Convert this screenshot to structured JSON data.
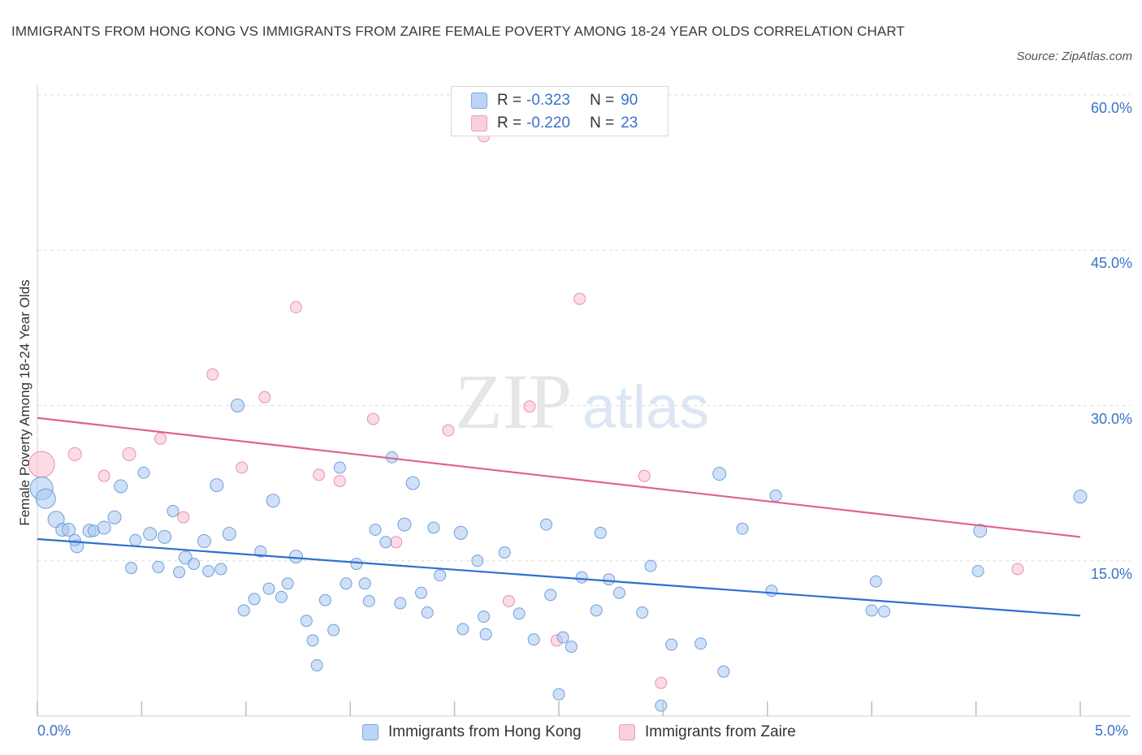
{
  "title": "IMMIGRANTS FROM HONG KONG VS IMMIGRANTS FROM ZAIRE FEMALE POVERTY AMONG 18-24 YEAR OLDS CORRELATION CHART",
  "source": "Source: ZipAtlas.com",
  "watermark": {
    "zip": "ZIP",
    "atlas": "atlas"
  },
  "legend": {
    "hk": {
      "r_label": "R =",
      "r_value": "-0.323",
      "n_label": "N =",
      "n_value": "90"
    },
    "zaire": {
      "r_label": "R =",
      "r_value": "-0.220",
      "n_label": "N =",
      "n_value": "23"
    }
  },
  "colors": {
    "hk_fill": "#aac8f0",
    "hk_stroke": "#6f9fdc",
    "hk_line": "#2e6fd0",
    "zaire_fill": "#f7c0d0",
    "zaire_stroke": "#e891ae",
    "zaire_line": "#e0608a",
    "tick_text": "#3b73c8",
    "grid": "#dddddd"
  },
  "chart_data": {
    "type": "scatter",
    "title": "IMMIGRANTS FROM HONG KONG VS IMMIGRANTS FROM ZAIRE FEMALE POVERTY AMONG 18-24 YEAR OLDS CORRELATION CHART",
    "xlabel": "",
    "ylabel": "Female Poverty Among 18-24 Year Olds",
    "xlim": [
      0,
      5
    ],
    "ylim": [
      0,
      60
    ],
    "x_tick_labels": [
      "0.0%",
      "5.0%"
    ],
    "y_tick_labels": [
      "15.0%",
      "30.0%",
      "45.0%",
      "60.0%"
    ],
    "y_ticks": [
      15,
      30,
      45,
      60
    ],
    "grid": true,
    "legend_position": "top-center",
    "series": [
      {
        "name": "Immigrants from Hong Kong",
        "color": "#aac8f0",
        "trend": {
          "x": [
            0,
            5
          ],
          "y": [
            17.1,
            9.7
          ]
        },
        "points": [
          [
            0.02,
            22.0,
            14
          ],
          [
            0.04,
            21.0,
            12
          ],
          [
            0.09,
            19.0,
            10
          ],
          [
            0.12,
            18.0,
            8
          ],
          [
            0.15,
            18.0,
            8
          ],
          [
            0.19,
            16.4,
            8
          ],
          [
            0.18,
            17.0,
            7
          ],
          [
            0.25,
            17.9,
            8
          ],
          [
            0.27,
            17.9,
            7
          ],
          [
            0.32,
            18.2,
            8
          ],
          [
            0.37,
            19.2,
            8
          ],
          [
            0.4,
            22.2,
            8
          ],
          [
            0.45,
            14.3,
            7
          ],
          [
            0.47,
            17.0,
            7
          ],
          [
            0.51,
            23.5,
            7
          ],
          [
            0.54,
            17.6,
            8
          ],
          [
            0.58,
            14.4,
            7
          ],
          [
            0.61,
            17.3,
            8
          ],
          [
            0.65,
            19.8,
            7
          ],
          [
            0.68,
            13.9,
            7
          ],
          [
            0.71,
            15.3,
            8
          ],
          [
            0.75,
            14.7,
            7
          ],
          [
            0.8,
            16.9,
            8
          ],
          [
            0.82,
            14.0,
            7
          ],
          [
            0.86,
            22.3,
            8
          ],
          [
            0.88,
            14.2,
            7
          ],
          [
            0.92,
            17.6,
            8
          ],
          [
            0.96,
            30.0,
            8
          ],
          [
            0.99,
            10.2,
            7
          ],
          [
            1.04,
            11.3,
            7
          ],
          [
            1.07,
            15.9,
            7
          ],
          [
            1.11,
            12.3,
            7
          ],
          [
            1.13,
            20.8,
            8
          ],
          [
            1.17,
            11.5,
            7
          ],
          [
            1.2,
            12.8,
            7
          ],
          [
            1.24,
            15.4,
            8
          ],
          [
            1.29,
            9.2,
            7
          ],
          [
            1.32,
            7.3,
            7
          ],
          [
            1.34,
            4.9,
            7
          ],
          [
            1.38,
            11.2,
            7
          ],
          [
            1.42,
            8.3,
            7
          ],
          [
            1.45,
            24.0,
            7
          ],
          [
            1.48,
            12.8,
            7
          ],
          [
            1.53,
            14.7,
            7
          ],
          [
            1.57,
            12.8,
            7
          ],
          [
            1.59,
            11.1,
            7
          ],
          [
            1.62,
            18.0,
            7
          ],
          [
            1.67,
            16.8,
            7
          ],
          [
            1.7,
            25.0,
            7
          ],
          [
            1.74,
            10.9,
            7
          ],
          [
            1.76,
            18.5,
            8
          ],
          [
            1.8,
            22.5,
            8
          ],
          [
            1.84,
            11.9,
            7
          ],
          [
            1.87,
            10.0,
            7
          ],
          [
            1.9,
            18.2,
            7
          ],
          [
            1.93,
            13.6,
            7
          ],
          [
            2.03,
            17.7,
            8
          ],
          [
            2.04,
            8.4,
            7
          ],
          [
            2.11,
            15.0,
            7
          ],
          [
            2.14,
            9.6,
            7
          ],
          [
            2.15,
            7.9,
            7
          ],
          [
            2.24,
            15.8,
            7
          ],
          [
            2.31,
            9.9,
            7
          ],
          [
            2.38,
            7.4,
            7
          ],
          [
            2.44,
            18.5,
            7
          ],
          [
            2.46,
            11.7,
            7
          ],
          [
            2.5,
            2.1,
            7
          ],
          [
            2.52,
            7.6,
            7
          ],
          [
            2.56,
            6.7,
            7
          ],
          [
            2.61,
            13.4,
            7
          ],
          [
            2.68,
            10.2,
            7
          ],
          [
            2.7,
            17.7,
            7
          ],
          [
            2.74,
            13.2,
            7
          ],
          [
            2.79,
            11.9,
            7
          ],
          [
            2.9,
            10.0,
            7
          ],
          [
            2.94,
            14.5,
            7
          ],
          [
            2.99,
            1.0,
            7
          ],
          [
            3.04,
            6.9,
            7
          ],
          [
            3.18,
            7.0,
            7
          ],
          [
            3.27,
            23.4,
            8
          ],
          [
            3.29,
            4.3,
            7
          ],
          [
            3.38,
            18.1,
            7
          ],
          [
            3.52,
            12.1,
            7
          ],
          [
            3.54,
            21.3,
            7
          ],
          [
            4.0,
            10.2,
            7
          ],
          [
            4.02,
            13.0,
            7
          ],
          [
            4.06,
            10.1,
            7
          ],
          [
            4.51,
            14.0,
            7
          ],
          [
            4.52,
            17.9,
            8
          ],
          [
            5.0,
            21.2,
            8
          ]
        ]
      },
      {
        "name": "Immigrants from Zaire",
        "color": "#f7c0d0",
        "trend": {
          "x": [
            0,
            5
          ],
          "y": [
            28.8,
            17.3
          ]
        },
        "points": [
          [
            0.02,
            24.3,
            16
          ],
          [
            0.18,
            25.3,
            8
          ],
          [
            0.32,
            23.2,
            7
          ],
          [
            0.44,
            25.3,
            8
          ],
          [
            0.59,
            26.8,
            7
          ],
          [
            0.7,
            19.2,
            7
          ],
          [
            0.84,
            33.0,
            7
          ],
          [
            0.98,
            24.0,
            7
          ],
          [
            1.09,
            30.8,
            7
          ],
          [
            1.24,
            39.5,
            7
          ],
          [
            1.35,
            23.3,
            7
          ],
          [
            1.45,
            22.7,
            7
          ],
          [
            1.61,
            28.7,
            7
          ],
          [
            1.72,
            16.8,
            7
          ],
          [
            1.97,
            27.6,
            7
          ],
          [
            2.14,
            56.0,
            7
          ],
          [
            2.26,
            11.1,
            7
          ],
          [
            2.36,
            29.9,
            7
          ],
          [
            2.49,
            7.3,
            7
          ],
          [
            2.6,
            40.3,
            7
          ],
          [
            2.91,
            23.2,
            7
          ],
          [
            2.99,
            3.2,
            7
          ],
          [
            4.7,
            14.2,
            7
          ]
        ]
      }
    ]
  },
  "bottom_legend": {
    "hk": "Immigrants from Hong Kong",
    "zaire": "Immigrants from Zaire"
  },
  "axes": {
    "ylabel": "Female Poverty Among 18-24 Year Olds",
    "x_min_label": "0.0%",
    "x_max_label": "5.0%"
  }
}
